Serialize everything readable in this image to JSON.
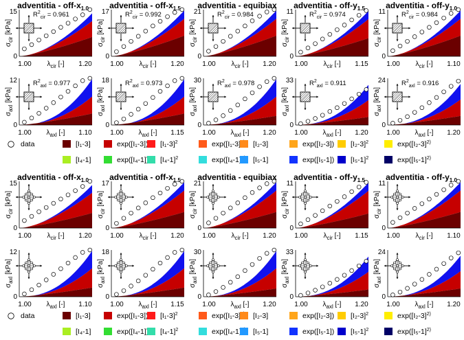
{
  "figure": {
    "blocks": 2
  },
  "chart_data": {
    "type": "stacked-area",
    "titles": [
      {
        "base": "adventitia - off-x",
        "sub": "1.0"
      },
      {
        "base": "adventitia - off-x",
        "sub": "1.5"
      },
      {
        "base": "adventitia - equibiax",
        "sub": ""
      },
      {
        "base": "adventitia - off-y",
        "sub": "1.5"
      },
      {
        "base": "adventitia - off-y",
        "sub": "1.0"
      }
    ],
    "unit": "[kPa]",
    "ylabel_base": "σ",
    "xlabel_base": "λ",
    "xunit": "[-]",
    "rows": [
      {
        "sub": "cir",
        "ymax": [
          "15",
          "17",
          "21",
          "11",
          "11"
        ],
        "xmin": [
          "1.00",
          "1.00",
          "1.00",
          "1.00",
          "1.00"
        ],
        "xmax": [
          "1.20",
          "1.20",
          "1.20",
          "1.15",
          "1.10"
        ]
      },
      {
        "sub": "axl",
        "ymax": [
          "12",
          "18",
          "30",
          "33",
          "24"
        ],
        "xmin": [
          "1.00",
          "1.00",
          "1.00",
          "1.00",
          "1.00"
        ],
        "xmax": [
          "1.10",
          "1.15",
          "1.20",
          "1.20",
          "1.20"
        ]
      }
    ],
    "r2_label": "R",
    "r2": {
      "cir": [
        "= 0.961",
        "= 0.992",
        "= 0.984",
        "= 0.974",
        "= 0.984"
      ],
      "axl": [
        "= 0.977",
        "= 0.973",
        "= 0.978",
        "= 0.911",
        "= 0.916"
      ]
    },
    "data_frac": {
      "cir": [
        [
          0.16,
          0.25,
          0.35,
          0.44,
          0.53,
          0.62,
          0.71,
          0.8,
          0.89,
          1.0
        ],
        [
          0.1,
          0.21,
          0.32,
          0.43,
          0.54,
          0.65,
          0.75,
          0.85,
          0.94,
          1.0
        ],
        [
          0.11,
          0.21,
          0.32,
          0.43,
          0.54,
          0.65,
          0.76,
          0.86,
          0.95,
          1.0
        ],
        [
          0.09,
          0.18,
          0.27,
          0.37,
          0.47,
          0.57,
          0.67,
          0.78,
          0.88,
          0.98
        ],
        [
          0.12,
          0.22,
          0.32,
          0.42,
          0.52,
          0.62,
          0.72,
          0.82,
          0.92,
          1.0
        ]
      ],
      "axl": [
        [
          0.06,
          0.15,
          0.25,
          0.36,
          0.48,
          0.6,
          0.72,
          0.84,
          0.95,
          1.0
        ],
        [
          0.05,
          0.13,
          0.23,
          0.34,
          0.46,
          0.59,
          0.72,
          0.84,
          0.95,
          1.0
        ],
        [
          0.04,
          0.11,
          0.2,
          0.31,
          0.43,
          0.56,
          0.69,
          0.82,
          0.93,
          1.0
        ],
        [
          0.03,
          0.08,
          0.14,
          0.21,
          0.29,
          0.37,
          0.46,
          0.56,
          0.66,
          0.76
        ],
        [
          0.04,
          0.1,
          0.18,
          0.27,
          0.37,
          0.48,
          0.59,
          0.71,
          0.83,
          0.94
        ]
      ]
    },
    "model_top": {
      "cir": [
        0.92,
        0.98,
        0.98,
        0.97,
        0.98
      ],
      "axl": [
        0.98,
        0.98,
        0.98,
        0.86,
        0.88
      ]
    },
    "layers": {
      "block1_cir": [
        0.45,
        0.45,
        0.45,
        0.4,
        0.45
      ],
      "block1_axl": [
        0.25,
        0.25,
        0.2,
        0.2,
        0.22
      ],
      "block2_cir": [
        0.35,
        0.35,
        0.35,
        0.32,
        0.35
      ],
      "block2_axl": [
        0.2,
        0.2,
        0.18,
        0.18,
        0.2
      ]
    },
    "legend": [
      {
        "label": "data",
        "sup": "",
        "marker": "circle",
        "color": "#ffffff"
      },
      {
        "label": "[I₁-3]",
        "sup": "",
        "color": "#6b0000"
      },
      {
        "label": "exp([I₁-3])",
        "sup": "",
        "color": "#c60000"
      },
      {
        "label": "[I₁-3]",
        "sup": "2",
        "color": "#ff1a1a"
      },
      {
        "label": "exp([I₁-3]",
        "sup": "2)",
        "color": "#ff5a1a"
      },
      {
        "label": "[I₂-3]",
        "sup": "",
        "color": "#ff8a1a"
      },
      {
        "label": "exp([I₂-3])",
        "sup": "",
        "color": "#ffa51a"
      },
      {
        "label": "[I₂-3]",
        "sup": "2",
        "color": "#ffcc00"
      },
      {
        "label": "exp([I₂-3]",
        "sup": "2)",
        "color": "#ffee00"
      },
      {
        "label": "[I₄-1]",
        "sup": "",
        "color": "#aaee22"
      },
      {
        "label": "exp([I₄-1])",
        "sup": "",
        "color": "#33dd33"
      },
      {
        "label": "[I₄-1]",
        "sup": "2",
        "color": "#33ddaa"
      },
      {
        "label": "exp([I₄-1]",
        "sup": "2)",
        "color": "#33dddd"
      },
      {
        "label": "[I₅-1]",
        "sup": "",
        "color": "#2299ff"
      },
      {
        "label": "exp([I₅-1])",
        "sup": "",
        "color": "#1133ff"
      },
      {
        "label": "[I₅-1]",
        "sup": "2",
        "color": "#0000cc"
      },
      {
        "label": "exp([I₅-1]",
        "sup": "2)",
        "color": "#000066"
      }
    ],
    "colors": {
      "dark": "#6b0000",
      "mid": "#c60000",
      "red": "#ff1a1a",
      "blue": "#1111ee"
    }
  }
}
